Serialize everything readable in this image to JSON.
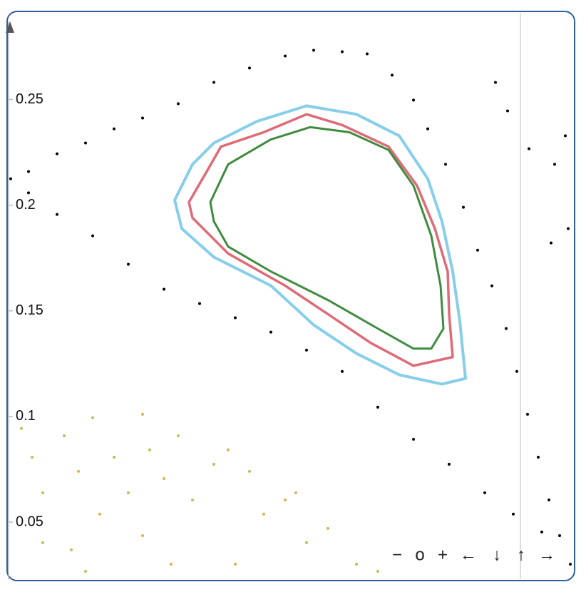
{
  "chart_data": {
    "type": "scatter",
    "ylim": [
      0.023,
      0.291
    ],
    "xlim": [
      0,
      794
    ],
    "yticks": [
      0.25,
      0.2,
      0.15,
      0.1,
      0.05
    ],
    "series": [
      {
        "color": "#000000",
        "mode": "markers",
        "x": [
          3,
          28,
          68,
          108,
          148,
          188,
          238,
          288,
          338,
          388,
          428,
          468,
          503,
          538,
          568,
          588,
          613,
          638,
          658,
          678,
          698,
          713,
          728,
          743,
          758,
          773,
          788,
          28,
          68,
          118,
          168,
          218,
          268,
          318,
          368,
          418,
          468,
          518,
          568,
          618,
          668,
          708,
          748,
          683,
          700,
          730,
          766,
          781,
          785,
          761
        ],
        "values": [
          0.2125,
          0.2159,
          0.2243,
          0.2294,
          0.2361,
          0.2412,
          0.248,
          0.2581,
          0.2649,
          0.2706,
          0.2733,
          0.2726,
          0.2716,
          0.2615,
          0.2497,
          0.2361,
          0.2193,
          0.199,
          0.1787,
          0.1618,
          0.1416,
          0.1213,
          0.101,
          0.0807,
          0.0605,
          0.0436,
          0.0301,
          0.2058,
          0.1956,
          0.1855,
          0.172,
          0.1602,
          0.1534,
          0.1467,
          0.1399,
          0.1314,
          0.1213,
          0.1044,
          0.0892,
          0.0774,
          0.0639,
          0.0538,
          0.0453,
          0.2581,
          0.2446,
          0.2267,
          0.2193,
          0.2328,
          0.1889,
          0.1821
        ]
      },
      {
        "color": "#87ceeb",
        "mode": "lines",
        "closed": true,
        "width": 4,
        "x": [
          233,
          258,
          288,
          348,
          418,
          488,
          548,
          588,
          608,
          623,
          633,
          641,
          608,
          548,
          488,
          428,
          368,
          288,
          243
        ],
        "values": [
          0.2024,
          0.2193,
          0.2294,
          0.2396,
          0.247,
          0.243,
          0.2328,
          0.2125,
          0.1923,
          0.1686,
          0.145,
          0.118,
          0.1153,
          0.1197,
          0.1298,
          0.1433,
          0.1619,
          0.1754,
          0.1889
        ]
      },
      {
        "color": "#de6b78",
        "mode": "lines",
        "closed": true,
        "width": 3.5,
        "x": [
          253,
          278,
          298,
          358,
          418,
          468,
          533,
          573,
          598,
          616,
          618,
          623,
          568,
          508,
          448,
          388,
          308,
          258
        ],
        "values": [
          0.2014,
          0.2159,
          0.2277,
          0.2345,
          0.243,
          0.2379,
          0.2277,
          0.2092,
          0.1889,
          0.1686,
          0.1484,
          0.1281,
          0.124,
          0.1348,
          0.1484,
          0.1619,
          0.1771,
          0.194
        ]
      },
      {
        "color": "#3f8b3f",
        "mode": "lines",
        "closed": true,
        "width": 3,
        "x": [
          283,
          308,
          368,
          423,
          478,
          533,
          568,
          593,
          606,
          610,
          593,
          568,
          518,
          448,
          368,
          308,
          288
        ],
        "values": [
          0.2014,
          0.2193,
          0.2311,
          0.2369,
          0.2345,
          0.2261,
          0.2092,
          0.1855,
          0.1619,
          0.1416,
          0.1321,
          0.1321,
          0.1416,
          0.1551,
          0.1686,
          0.1804,
          0.1923
        ]
      },
      {
        "color": "#cdb750",
        "mode": "markers",
        "x": [
          18,
          33,
          48,
          78,
          98,
          118,
          128,
          148,
          168,
          188,
          198,
          218,
          238,
          258,
          288,
          308,
          338,
          358,
          388,
          403,
          418,
          448,
          488,
          518,
          88,
          108,
          48,
          188,
          228,
          318
        ],
        "values": [
          0.0943,
          0.0807,
          0.0639,
          0.0909,
          0.074,
          0.0994,
          0.0538,
          0.0807,
          0.0639,
          0.101,
          0.0842,
          0.0706,
          0.0909,
          0.0605,
          0.0774,
          0.0842,
          0.074,
          0.0538,
          0.0605,
          0.0639,
          0.0403,
          0.047,
          0.0301,
          0.0267,
          0.0369,
          0.0267,
          0.0403,
          0.0436,
          0.0301,
          0.0301
        ]
      }
    ]
  },
  "toolbar": [
    "−",
    "o",
    "+",
    "←",
    "↓",
    "↑",
    "→"
  ]
}
